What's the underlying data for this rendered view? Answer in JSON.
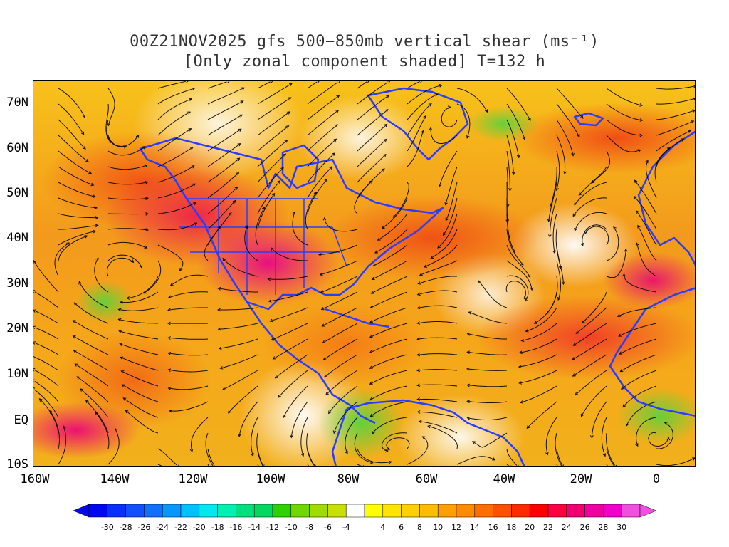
{
  "title": {
    "line1": "00Z21NOV2025 gfs 500−850mb vertical shear (ms⁻¹)",
    "line2": "[Only zonal component shaded] T=132 h"
  },
  "lat_ticks": [
    "70N",
    "60N",
    "50N",
    "40N",
    "30N",
    "20N",
    "10N",
    "EQ",
    "10S"
  ],
  "lon_ticks": [
    "160W",
    "140W",
    "120W",
    "100W",
    "80W",
    "60W",
    "40W",
    "20W",
    "0"
  ],
  "colorbar": {
    "labels": [
      "-30",
      "-28",
      "-26",
      "-24",
      "-22",
      "-20",
      "-18",
      "-16",
      "-14",
      "-12",
      "-10",
      "-8",
      "-6",
      "-4",
      "4",
      "6",
      "8",
      "10",
      "12",
      "14",
      "16",
      "18",
      "20",
      "22",
      "24",
      "26",
      "28",
      "30"
    ],
    "colors": [
      "#0008f0",
      "#0a30ff",
      "#1050ff",
      "#1070ff",
      "#0a96ff",
      "#00c0ff",
      "#00e8f0",
      "#00f0b4",
      "#00e080",
      "#00d860",
      "#30d000",
      "#70d800",
      "#a0dc00",
      "#c8e000",
      "#ffffff",
      "#ffff00",
      "#ffe400",
      "#ffd000",
      "#ffbc00",
      "#ffa000",
      "#ff8c00",
      "#ff6e00",
      "#ff5000",
      "#ff2a00",
      "#ff0000",
      "#ff0040",
      "#f00070",
      "#f000a0",
      "#f000c8",
      "#f050e0"
    ],
    "low_arrow_color": "#0008f0",
    "high_arrow_color": "#f050e0"
  },
  "coastline_color": "#2a3cff",
  "streamline_color": "#000000"
}
